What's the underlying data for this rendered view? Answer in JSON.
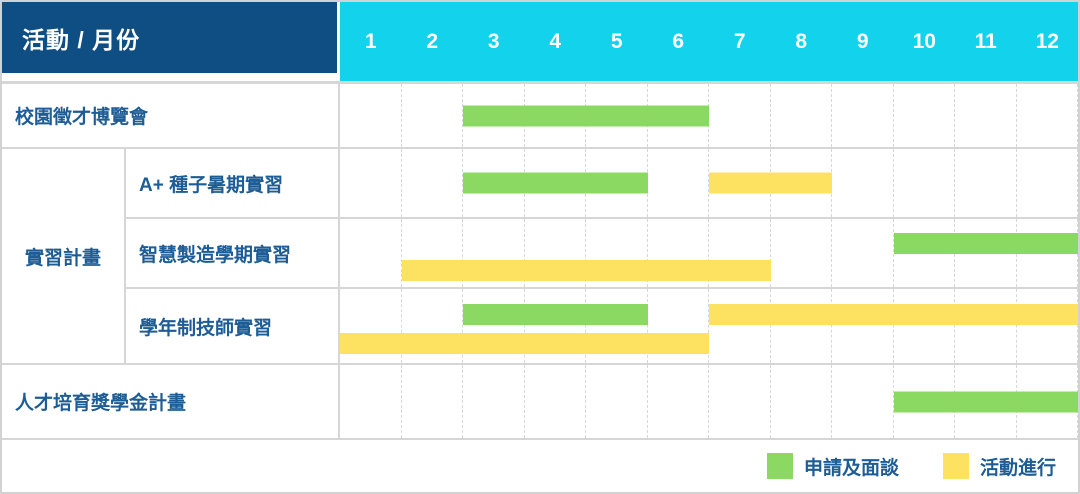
{
  "header": {
    "corner_label": "活動 / 月份"
  },
  "colors": {
    "header_left_bg": "#0f4e83",
    "header_months_bg": "#12d2ec",
    "green_bar": "#8bd963",
    "yellow_bar": "#fde262",
    "label_text": "#1d5c94",
    "grid_line": "#d6d6d6"
  },
  "chart_data": {
    "type": "bar",
    "subtype": "gantt-schedule",
    "title": "活動 / 月份",
    "xlabel": "月份",
    "x_ticks": [
      "1",
      "2",
      "3",
      "4",
      "5",
      "6",
      "7",
      "8",
      "9",
      "10",
      "11",
      "12"
    ],
    "x_range": [
      1,
      12
    ],
    "grid": true,
    "legend_position": "bottom-right",
    "rows": [
      {
        "group": null,
        "activity": "校園徵才博覽會",
        "lanes": 1,
        "bars": [
          {
            "phase": "申請及面談",
            "color": "#8bd963",
            "start_month": 3,
            "end_month": 6,
            "lane": 1
          }
        ]
      },
      {
        "group": "實習計畫",
        "activity": "A+ 種子暑期實習",
        "lanes": 1,
        "bars": [
          {
            "phase": "申請及面談",
            "color": "#8bd963",
            "start_month": 3,
            "end_month": 5,
            "lane": 1
          },
          {
            "phase": "活動進行",
            "color": "#fde262",
            "start_month": 7,
            "end_month": 8,
            "lane": 1
          }
        ]
      },
      {
        "group": "實習計畫",
        "activity": "智慧製造學期實習",
        "lanes": 2,
        "bars": [
          {
            "phase": "申請及面談",
            "color": "#8bd963",
            "start_month": 10,
            "end_month": 12,
            "lane": 1
          },
          {
            "phase": "活動進行",
            "color": "#fde262",
            "start_month": 2,
            "end_month": 7,
            "lane": 2
          }
        ]
      },
      {
        "group": "實習計畫",
        "activity": "學年制技師實習",
        "lanes": 2,
        "bars": [
          {
            "phase": "申請及面談",
            "color": "#8bd963",
            "start_month": 3,
            "end_month": 5,
            "lane": 1
          },
          {
            "phase": "活動進行",
            "color": "#fde262",
            "start_month": 7,
            "end_month": 12,
            "lane": 1
          },
          {
            "phase": "活動進行",
            "color": "#fde262",
            "start_month": 1,
            "end_month": 6,
            "lane": 2
          }
        ]
      },
      {
        "group": null,
        "activity": "人才培育獎學金計畫",
        "lanes": 1,
        "bars": [
          {
            "phase": "申請及面談",
            "color": "#8bd963",
            "start_month": 10,
            "end_month": 12,
            "lane": 1
          }
        ]
      }
    ],
    "legend": [
      {
        "label": "申請及面談",
        "color": "#8bd963"
      },
      {
        "label": "活動進行",
        "color": "#fde262"
      }
    ]
  }
}
